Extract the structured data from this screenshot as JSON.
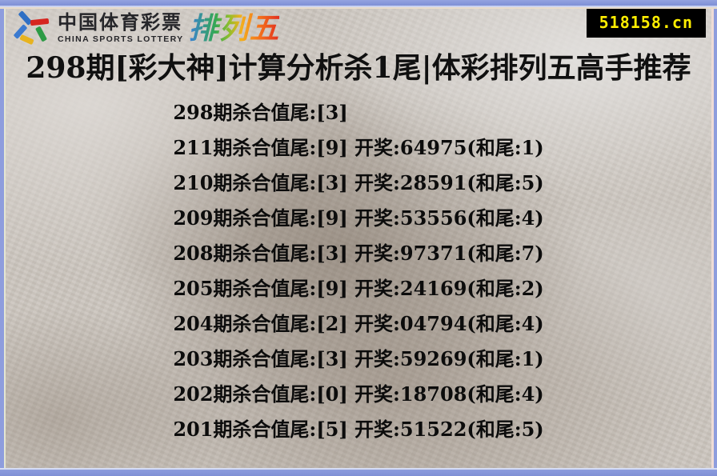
{
  "brand": {
    "cn_name": "中国体育彩票",
    "en_name": "CHINA SPORTS LOTTERY",
    "product_name": "排列五"
  },
  "site_badge": {
    "text": "518158.cn"
  },
  "title": "298期[彩大神]计算分析杀1尾|体彩排列五高手推荐",
  "predictions": [
    "298期杀合值尾:[3]",
    "211期杀合值尾:[9] 开奖:64975(和尾:1)",
    "210期杀合值尾:[3] 开奖:28591(和尾:5)",
    "209期杀合值尾:[9] 开奖:53556(和尾:4)",
    "208期杀合值尾:[3] 开奖:97371(和尾:7)",
    "205期杀合值尾:[9] 开奖:24169(和尾:2)",
    "204期杀合值尾:[2] 开奖:04794(和尾:4)",
    "203期杀合值尾:[3] 开奖:59269(和尾:1)",
    "202期杀合值尾:[0] 开奖:18708(和尾:4)",
    "201期杀合值尾:[5] 开奖:51522(和尾:5)"
  ],
  "colors": {
    "frame_blue": "#8e9ddd",
    "badge_bg": "#000000",
    "badge_text": "#ffee00",
    "title_text": "#101010",
    "list_text": "#0c0c0c",
    "background_base": "#ccc6bf"
  }
}
